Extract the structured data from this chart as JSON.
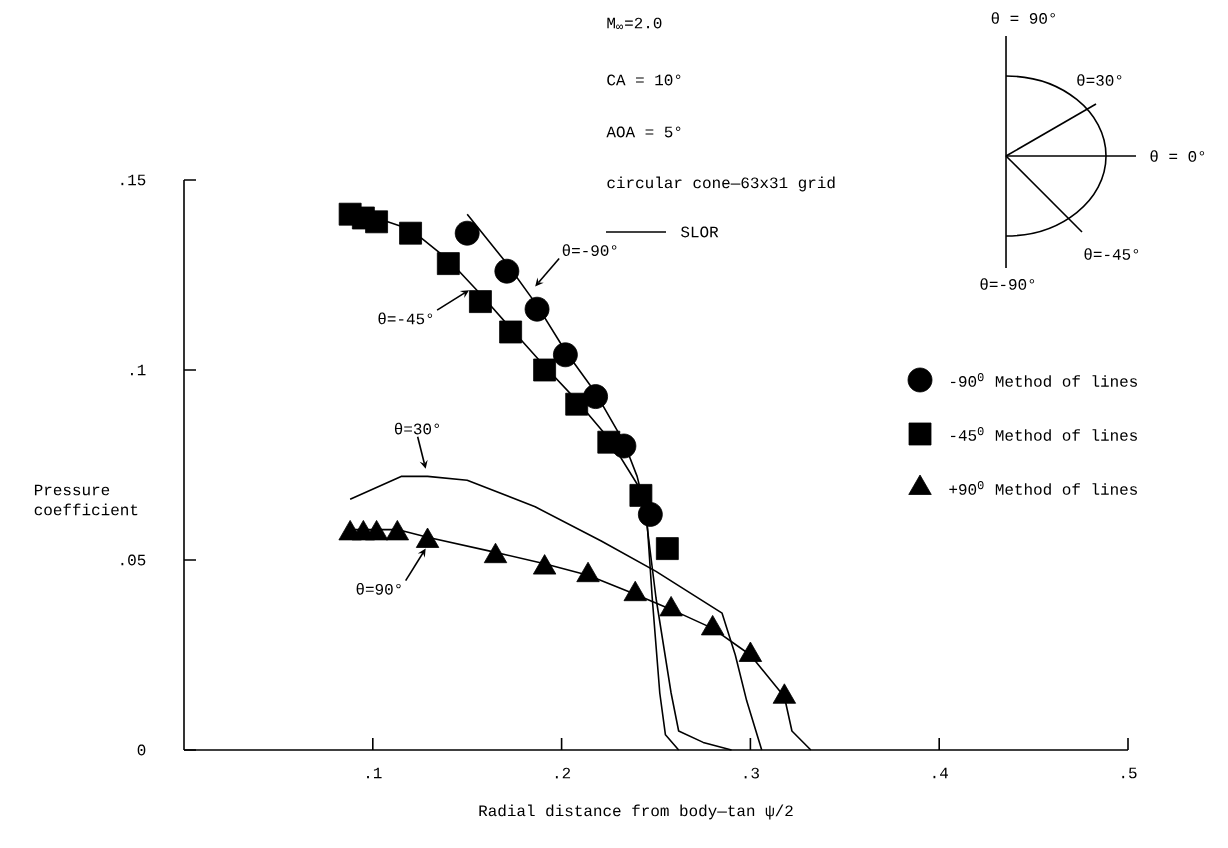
{
  "chart_data": {
    "type": "line",
    "xlabel": "Radial distance from body—tan ψ/2",
    "ylabel": "Pressure coefficient",
    "xlim": [
      0,
      0.5
    ],
    "ylim": [
      0,
      0.15
    ],
    "xticks": [
      {
        "value": 0.1,
        "label": ".1"
      },
      {
        "value": 0.2,
        "label": ".2"
      },
      {
        "value": 0.3,
        "label": ".3"
      },
      {
        "value": 0.4,
        "label": ".4"
      },
      {
        "value": 0.5,
        "label": ".5"
      }
    ],
    "yticks": [
      0,
      {
        "value": 0.05,
        "label": ".05"
      },
      {
        "value": 0.1,
        "label": ".1"
      },
      {
        "value": 0.15,
        "label": ".15"
      }
    ],
    "legend": "right",
    "line_style": "solid",
    "annotations": [
      "M$_{∞}$=2.0",
      "CA = 10°",
      "AOA = 5°",
      "circular cone—63x31 grid",
      {
        "text": "θ=-90°",
        "x": 0.186,
        "y": 0.122
      },
      {
        "text": "θ=-45°",
        "x": 0.151,
        "y": 0.121
      },
      {
        "text": "θ=30°",
        "x": 0.128,
        "y": 0.074
      },
      {
        "text": "θ=90°",
        "x": 0.128,
        "y": 0.053
      },
      "θ = 90°",
      "θ=30°",
      "θ = 0°",
      "θ=-45°",
      "θ=-90°"
    ],
    "series": [
      {
        "name": "SLOR",
        "color": "#000000",
        "x": [
          0.15,
          0.171,
          0.187,
          0.202,
          0.218,
          0.233,
          0.24,
          0.245,
          0.248,
          0.252,
          0.255,
          0.262
        ],
        "values": [
          0.141,
          0.128,
          0.117,
          0.105,
          0.094,
          0.081,
          0.072,
          0.062,
          0.04,
          0.015,
          0.004,
          0.0
        ]
      },
      {
        "color": "#000000",
        "x": [
          0.088,
          0.102,
          0.12,
          0.14,
          0.157,
          0.173,
          0.191,
          0.208,
          0.225,
          0.24,
          0.245,
          0.25,
          0.258,
          0.262,
          0.275,
          0.29
        ],
        "values": [
          0.142,
          0.14,
          0.137,
          0.129,
          0.12,
          0.111,
          0.101,
          0.092,
          0.082,
          0.07,
          0.06,
          0.04,
          0.015,
          0.005,
          0.002,
          0.0
        ]
      },
      {
        "color": "#000000",
        "x": [
          0.088,
          0.115,
          0.129,
          0.15,
          0.186,
          0.221,
          0.25,
          0.285,
          0.292,
          0.298,
          0.306
        ],
        "values": [
          0.066,
          0.072,
          0.072,
          0.071,
          0.064,
          0.055,
          0.047,
          0.036,
          0.025,
          0.013,
          0.0
        ]
      },
      {
        "color": "#000000",
        "x": [
          0.088,
          0.113,
          0.129,
          0.165,
          0.191,
          0.214,
          0.239,
          0.258,
          0.28,
          0.3,
          0.318,
          0.322,
          0.332
        ],
        "values": [
          0.058,
          0.058,
          0.056,
          0.052,
          0.049,
          0.046,
          0.041,
          0.037,
          0.032,
          0.025,
          0.014,
          0.005,
          0.0
        ]
      },
      {
        "type": "scatter",
        "name": "-90$^{0}$ Method of lines",
        "marker": "circle",
        "color": "#000000",
        "x": [
          0.15,
          0.171,
          0.187,
          0.202,
          0.218,
          0.233,
          0.247
        ],
        "values": [
          0.136,
          0.126,
          0.116,
          0.104,
          0.093,
          0.08,
          0.062
        ]
      },
      {
        "type": "scatter",
        "name": "-45$^{0}$ Method of lines",
        "marker": "square",
        "color": "#000000",
        "x": [
          0.088,
          0.095,
          0.102,
          0.12,
          0.14,
          0.157,
          0.173,
          0.191,
          0.208,
          0.225,
          0.242,
          0.256
        ],
        "values": [
          0.141,
          0.14,
          0.139,
          0.136,
          0.128,
          0.118,
          0.11,
          0.1,
          0.091,
          0.081,
          0.067,
          0.053
        ]
      },
      {
        "type": "scatter",
        "name": "+90$^{0}$ Method of lines",
        "marker": "triangle",
        "color": "#000000",
        "x": [
          0.088,
          0.095,
          0.102,
          0.113,
          0.129,
          0.165,
          0.191,
          0.214,
          0.239,
          0.258,
          0.28,
          0.3,
          0.318
        ],
        "values": [
          0.057,
          0.057,
          0.057,
          0.057,
          0.055,
          0.051,
          0.048,
          0.046,
          0.041,
          0.037,
          0.032,
          0.025,
          0.014
        ]
      }
    ]
  }
}
